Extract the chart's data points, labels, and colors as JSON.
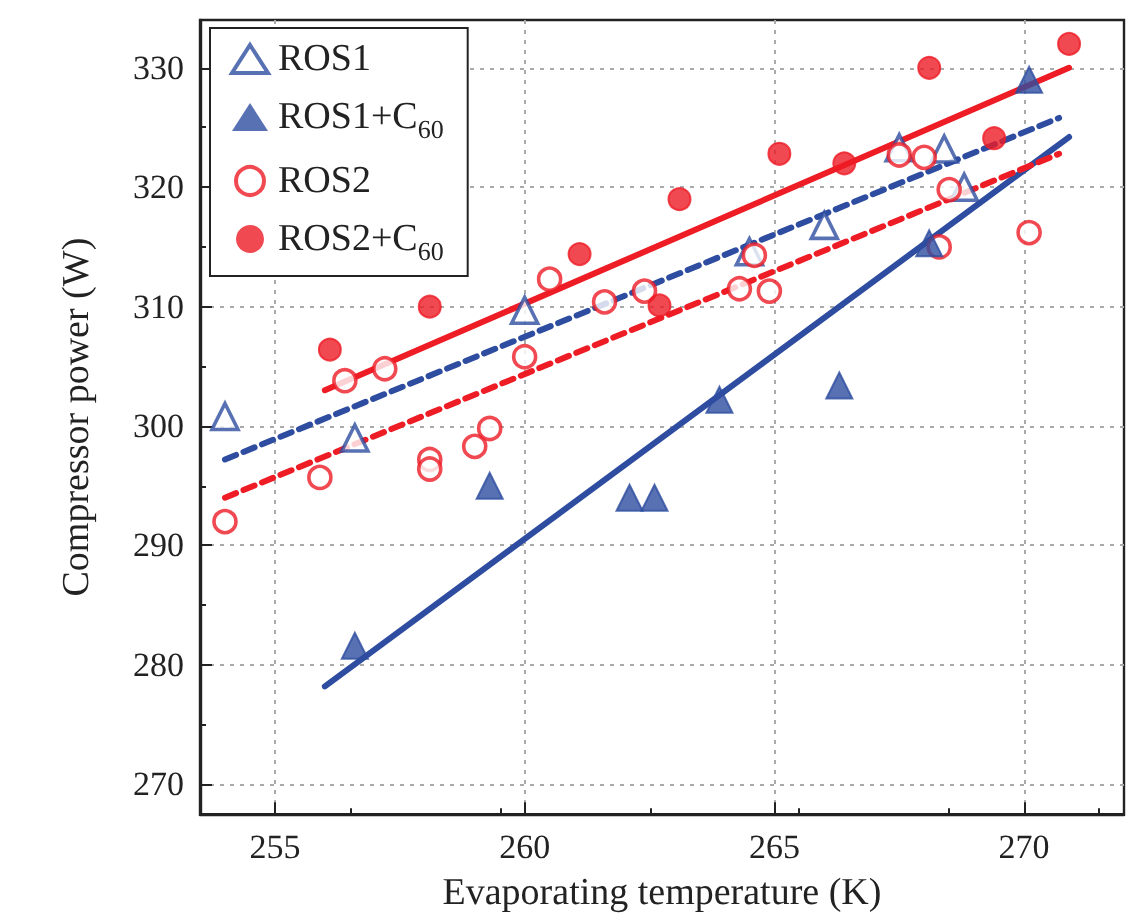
{
  "chart_data": {
    "type": "scatter",
    "xlabel": "Evaporating temperature (K)",
    "ylabel": "Compressor power (W)",
    "xlim": [
      253.5,
      272
    ],
    "xticks": [
      255,
      260,
      265,
      270
    ],
    "ylim": [
      267.5,
      334
    ],
    "yticks": [
      270,
      280,
      290,
      300,
      310,
      320,
      330
    ],
    "grid": true,
    "legend": "top left",
    "series": [
      {
        "name": "ROS1",
        "color": "#2e4da0",
        "marker": "triangle-open",
        "x": [
          254,
          256.6,
          260,
          264.5,
          266,
          267.5,
          268.4,
          268.8
        ],
        "values": [
          300.8,
          299,
          309.7,
          314.6,
          316.8,
          323.3,
          323.2,
          320
        ]
      },
      {
        "name": "ROS1+C$_{60}$",
        "color": "#2e4da0",
        "marker": "triangle",
        "x": [
          256.6,
          259.3,
          262.1,
          262.6,
          263.9,
          266.3,
          268.1,
          270.1
        ],
        "values": [
          281.6,
          295,
          294,
          294,
          302.2,
          303.4,
          315.3,
          329
        ]
      },
      {
        "name": "ROS2",
        "color": "#ee1c25",
        "marker": "circle-open",
        "x": [
          254,
          255.9,
          256.4,
          257.2,
          258.1,
          258.1,
          259,
          259.3,
          260,
          260.5,
          261.6,
          262.4,
          264.3,
          264.6,
          264.9,
          267.5,
          268,
          268.3,
          268.5,
          270.1
        ],
        "values": [
          292,
          295.7,
          303.8,
          304.8,
          297.2,
          296.4,
          298.3,
          299.8,
          305.8,
          312.3,
          310.4,
          311.3,
          311.5,
          314.3,
          311.3,
          322.7,
          322.5,
          315,
          319.8,
          316.2
        ]
      },
      {
        "name": "ROS2+C$_{60}$",
        "color": "#ee1c25",
        "marker": "circle",
        "x": [
          256.1,
          258.1,
          261.1,
          262.7,
          263.1,
          265.1,
          266.4,
          268.1,
          269.4,
          270.9
        ],
        "values": [
          306.4,
          310,
          314.4,
          310.1,
          319,
          322.8,
          322,
          330,
          324.1,
          332
        ]
      },
      {
        "type": "line",
        "color": "#2e4da0",
        "line_style": "dashed",
        "marker": "none",
        "x": [
          254,
          270.7
        ],
        "values": [
          297.2,
          325.8
        ]
      },
      {
        "type": "line",
        "color": "#2e4da0",
        "line_style": "solid",
        "marker": "none",
        "x": [
          256,
          270.9
        ],
        "values": [
          278.2,
          324.2
        ]
      },
      {
        "type": "line",
        "color": "#ee1c25",
        "line_style": "dashed",
        "marker": "none",
        "x": [
          254,
          270.7
        ],
        "values": [
          294,
          322.8
        ]
      },
      {
        "type": "line",
        "color": "#ee1c25",
        "line_style": "solid",
        "marker": "none",
        "x": [
          256,
          270.9
        ],
        "values": [
          303,
          330
        ]
      }
    ]
  }
}
